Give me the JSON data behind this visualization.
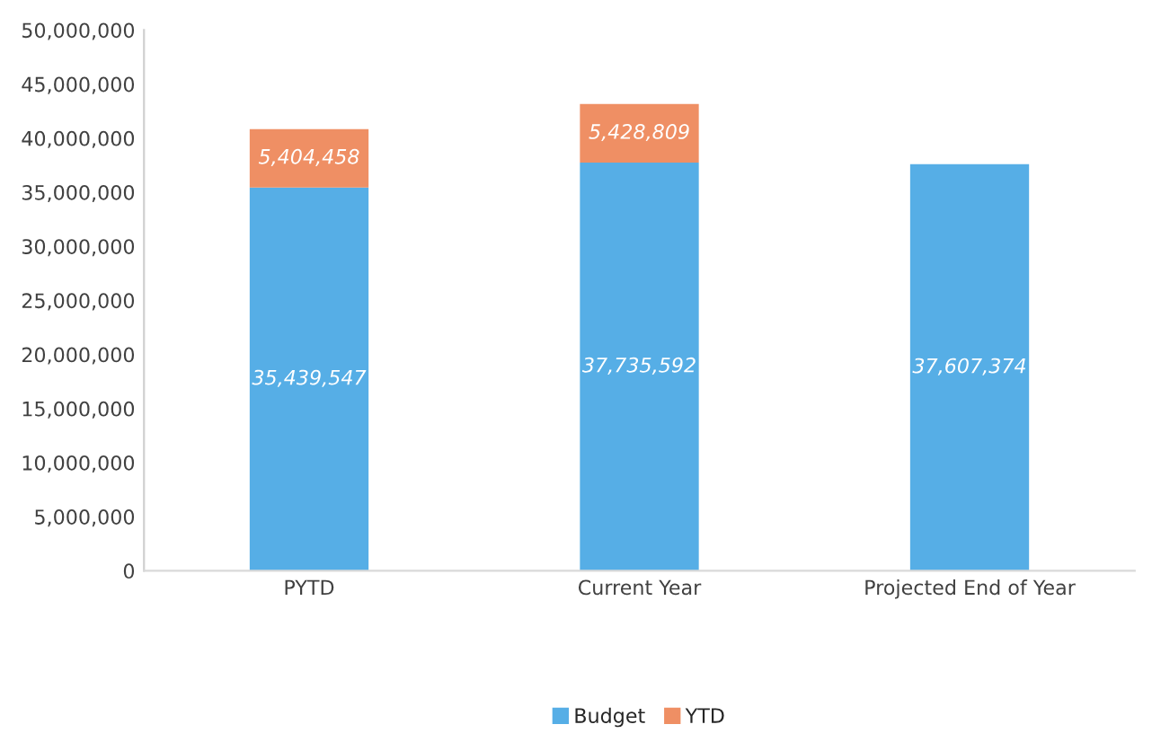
{
  "chart_data": {
    "type": "bar",
    "stacked": true,
    "categories": [
      "PYTD",
      "Current Year",
      "Projected End of Year"
    ],
    "series": [
      {
        "name": "Budget",
        "color": "#56aee6",
        "values": [
          35439547,
          37735592,
          37607374
        ],
        "value_labels": [
          "35,439,547",
          "37,735,592",
          "37,607,374"
        ]
      },
      {
        "name": "YTD",
        "color": "#ef8f64",
        "values": [
          5404458,
          5428809,
          null
        ],
        "value_labels": [
          "5,404,458",
          "5,428,809",
          null
        ]
      }
    ],
    "ylim": [
      0,
      50000000
    ],
    "yticks": [
      {
        "value": 0,
        "label": "0"
      },
      {
        "value": 5000000,
        "label": "5,000,000"
      },
      {
        "value": 10000000,
        "label": "10,000,000"
      },
      {
        "value": 15000000,
        "label": "15,000,000"
      },
      {
        "value": 20000000,
        "label": "20,000,000"
      },
      {
        "value": 25000000,
        "label": "25,000,000"
      },
      {
        "value": 30000000,
        "label": "30,000,000"
      },
      {
        "value": 35000000,
        "label": "35,000,000"
      },
      {
        "value": 40000000,
        "label": "40,000,000"
      },
      {
        "value": 45000000,
        "label": "45,000,000"
      },
      {
        "value": 50000000,
        "label": "50,000,000"
      }
    ],
    "grid": false,
    "legend": "bottom"
  }
}
